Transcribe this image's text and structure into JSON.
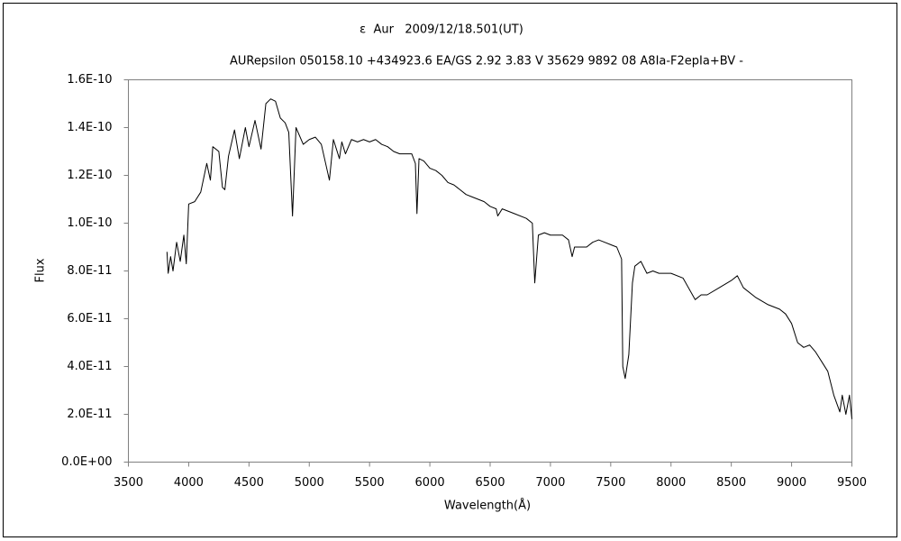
{
  "chart_data": {
    "type": "line",
    "title": "ε  Aur   2009/12/18.501(UT)",
    "subtitle": "AURepsilon 050158.10 +434923.6 EA/GS 2.92 3.83 V 35629 9892 08 A8Ia-F2epIa+BV -",
    "x_label": "Wavelength(Å)",
    "y_label": "Flux",
    "xlim": [
      3500,
      9500
    ],
    "xticks": [
      3500,
      4000,
      4500,
      5000,
      5500,
      6000,
      6500,
      7000,
      7500,
      8000,
      8500,
      9000,
      9500
    ],
    "ylim": [
      0,
      1.6e-10
    ],
    "yticks": [
      {
        "value": 0,
        "label": "0.0E+00"
      },
      {
        "value": 2e-11,
        "label": "2.0E-11"
      },
      {
        "value": 4e-11,
        "label": "4.0E-11"
      },
      {
        "value": 6e-11,
        "label": "6.0E-11"
      },
      {
        "value": 8e-11,
        "label": "8.0E-11"
      },
      {
        "value": 1e-10,
        "label": "1.0E-10"
      },
      {
        "value": 1.2e-10,
        "label": "1.2E-10"
      },
      {
        "value": 1.4e-10,
        "label": "1.4E-10"
      },
      {
        "value": 1.6e-10,
        "label": "1.6E-10"
      }
    ],
    "grid": false,
    "x": [
      3820,
      3830,
      3850,
      3870,
      3900,
      3930,
      3960,
      3980,
      4000,
      4050,
      4100,
      4150,
      4180,
      4200,
      4250,
      4280,
      4300,
      4330,
      4380,
      4420,
      4470,
      4500,
      4550,
      4600,
      4640,
      4680,
      4720,
      4760,
      4800,
      4830,
      4861,
      4890,
      4950,
      5000,
      5050,
      5100,
      5167,
      5200,
      5250,
      5270,
      5300,
      5350,
      5400,
      5450,
      5500,
      5550,
      5600,
      5650,
      5700,
      5750,
      5800,
      5850,
      5880,
      5893,
      5910,
      5950,
      6000,
      6050,
      6100,
      6150,
      6200,
      6250,
      6300,
      6350,
      6400,
      6450,
      6500,
      6550,
      6563,
      6600,
      6700,
      6800,
      6850,
      6870,
      6900,
      6950,
      7000,
      7100,
      7150,
      7180,
      7200,
      7300,
      7350,
      7400,
      7450,
      7500,
      7550,
      7590,
      7600,
      7620,
      7650,
      7680,
      7700,
      7750,
      7800,
      7850,
      7900,
      8000,
      8100,
      8200,
      8250,
      8300,
      8400,
      8500,
      8550,
      8600,
      8700,
      8800,
      8850,
      8900,
      8950,
      9000,
      9050,
      9100,
      9150,
      9200,
      9250,
      9300,
      9350,
      9400,
      9420,
      9450,
      9480,
      9500
    ],
    "series": [
      {
        "name": "Flux",
        "color": "#000000",
        "values": [
          8.8e-11,
          7.9e-11,
          8.6e-11,
          8e-11,
          9.2e-11,
          8.4e-11,
          9.5e-11,
          8.3e-11,
          1.08e-10,
          1.09e-10,
          1.13e-10,
          1.25e-10,
          1.18e-10,
          1.32e-10,
          1.3e-10,
          1.15e-10,
          1.14e-10,
          1.28e-10,
          1.39e-10,
          1.27e-10,
          1.4e-10,
          1.32e-10,
          1.43e-10,
          1.31e-10,
          1.5e-10,
          1.52e-10,
          1.51e-10,
          1.44e-10,
          1.42e-10,
          1.38e-10,
          1.03e-10,
          1.4e-10,
          1.33e-10,
          1.35e-10,
          1.36e-10,
          1.33e-10,
          1.18e-10,
          1.35e-10,
          1.27e-10,
          1.34e-10,
          1.29e-10,
          1.35e-10,
          1.34e-10,
          1.35e-10,
          1.34e-10,
          1.35e-10,
          1.33e-10,
          1.32e-10,
          1.3e-10,
          1.29e-10,
          1.29e-10,
          1.29e-10,
          1.25e-10,
          1.04e-10,
          1.27e-10,
          1.26e-10,
          1.23e-10,
          1.22e-10,
          1.2e-10,
          1.17e-10,
          1.16e-10,
          1.14e-10,
          1.12e-10,
          1.11e-10,
          1.1e-10,
          1.09e-10,
          1.07e-10,
          1.06e-10,
          1.03e-10,
          1.06e-10,
          1.04e-10,
          1.02e-10,
          1e-10,
          7.5e-11,
          9.5e-11,
          9.6e-11,
          9.5e-11,
          9.5e-11,
          9.3e-11,
          8.6e-11,
          9e-11,
          9e-11,
          9.2e-11,
          9.3e-11,
          9.2e-11,
          9.1e-11,
          9e-11,
          8.5e-11,
          4e-11,
          3.5e-11,
          4.5e-11,
          7.5e-11,
          8.2e-11,
          8.4e-11,
          7.9e-11,
          8e-11,
          7.9e-11,
          7.9e-11,
          7.7e-11,
          6.8e-11,
          7e-11,
          7e-11,
          7.3e-11,
          7.6e-11,
          7.8e-11,
          7.3e-11,
          6.9e-11,
          6.6e-11,
          6.5e-11,
          6.4e-11,
          6.2e-11,
          5.8e-11,
          5e-11,
          4.8e-11,
          4.9e-11,
          4.6e-11,
          4.2e-11,
          3.8e-11,
          2.8e-11,
          2.1e-11,
          2.8e-11,
          2e-11,
          2.8e-11,
          1.8e-11
        ]
      }
    ]
  }
}
